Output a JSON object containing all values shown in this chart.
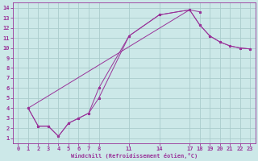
{
  "xlabel": "Windchill (Refroidissement éolien,°C)",
  "bg_color": "#cce8e8",
  "line_color": "#993399",
  "grid_color": "#aacccc",
  "xlim": [
    -0.5,
    23.5
  ],
  "ylim": [
    0.5,
    14.5
  ],
  "xticks": [
    0,
    1,
    2,
    3,
    4,
    5,
    6,
    7,
    8,
    11,
    14,
    17,
    18,
    19,
    20,
    21,
    22,
    23
  ],
  "yticks": [
    1,
    2,
    3,
    4,
    5,
    6,
    7,
    8,
    9,
    10,
    11,
    12,
    13,
    14
  ],
  "curve1_x": [
    1,
    2,
    3,
    4,
    5,
    6,
    7,
    8,
    11,
    14,
    17,
    18
  ],
  "curve1_y": [
    4.0,
    2.2,
    2.2,
    1.2,
    2.5,
    3.0,
    3.5,
    6.0,
    11.2,
    13.3,
    13.8,
    13.6
  ],
  "curve2_x": [
    1,
    2,
    3,
    4,
    5,
    6,
    7,
    8,
    11,
    14,
    17,
    18,
    19,
    20,
    21,
    22,
    23
  ],
  "curve2_y": [
    4.0,
    2.2,
    2.2,
    1.2,
    2.5,
    3.0,
    3.5,
    5.0,
    11.2,
    13.3,
    13.8,
    12.3,
    11.2,
    10.6,
    10.2,
    10.0,
    9.9
  ],
  "curve3_x": [
    1,
    17,
    18,
    19,
    20,
    21,
    22,
    23
  ],
  "curve3_y": [
    4.0,
    13.8,
    12.3,
    11.2,
    10.6,
    10.2,
    10.0,
    9.9
  ]
}
